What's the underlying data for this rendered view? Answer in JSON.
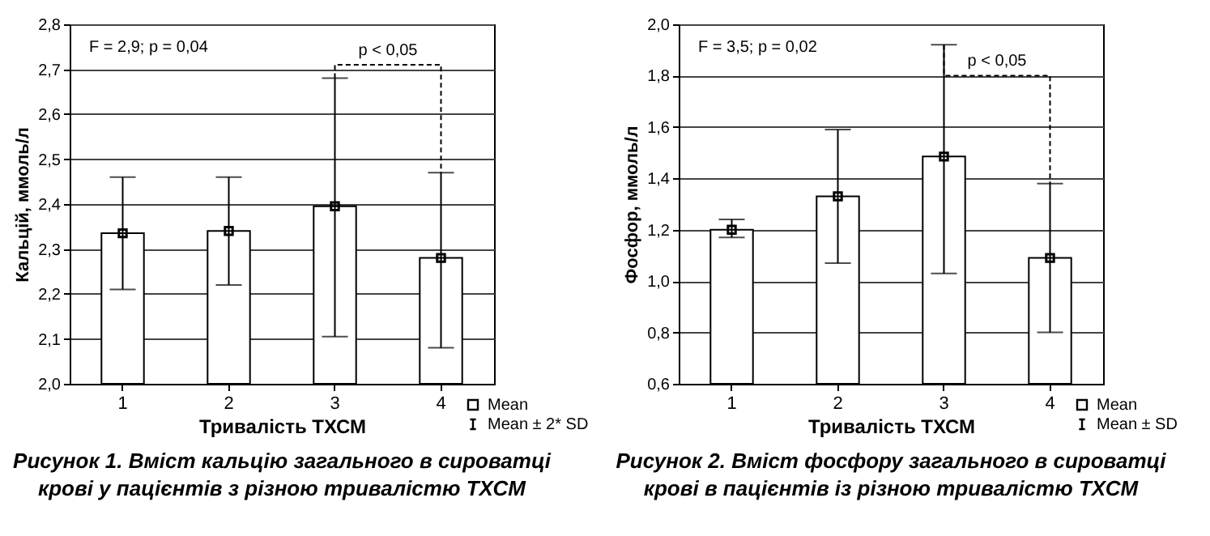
{
  "chart_data": [
    {
      "type": "bar",
      "title": "Рисунок 1. Вміст кальцію загального в сироватці крові у пацієнтів з різною тривалістю ТХСМ",
      "xlabel": "Тривалість ТХСМ",
      "ylabel": "Кальцій, ммоль/л",
      "categories": [
        "1",
        "2",
        "3",
        "4"
      ],
      "series": [
        {
          "color": "#ffffff",
          "values": [
            2.335,
            2.34,
            2.395,
            2.28
          ]
        },
        {
          "type": "scatter",
          "name": "Mean",
          "color": "#000000",
          "x": [
            "1",
            "2",
            "3",
            "4"
          ],
          "values": [
            2.335,
            2.34,
            2.395,
            2.28
          ],
          "errors": [
            [
              2.21,
              2.46
            ],
            [
              2.22,
              2.46
            ],
            [
              2.105,
              2.68
            ],
            [
              2.08,
              2.47
            ]
          ]
        }
      ],
      "ylim": [
        2.0,
        2.8
      ],
      "yticks": [
        {
          "value": 2.0,
          "label": "2,0"
        },
        {
          "value": 2.1,
          "label": "2,1"
        },
        {
          "value": 2.2,
          "label": "2,2"
        },
        {
          "value": 2.3,
          "label": "2,3"
        },
        {
          "value": 2.4,
          "label": "2,4"
        },
        {
          "value": 2.5,
          "label": "2,5"
        },
        {
          "value": 2.6,
          "label": "2,6"
        },
        {
          "value": 2.7,
          "label": "2,7"
        },
        {
          "value": 2.8,
          "label": "2,8"
        }
      ],
      "grid": "y",
      "marker": "square",
      "legend": "bottom right",
      "annotations": [
        "F = 2,9; p = 0,04",
        "Mean ± 2* SD",
        "p < 0,05"
      ]
    },
    {
      "type": "bar",
      "title": "Рисунок 2. Вміст фосфору загального в сироватці крові в пацієнтів із різною тривалістю ТХСМ",
      "xlabel": "Тривалість ТХСМ",
      "ylabel": "Фосфор, ммоль/л",
      "categories": [
        "1",
        "2",
        "3",
        "4"
      ],
      "series": [
        {
          "color": "#ffffff",
          "values": [
            1.2,
            1.33,
            1.485,
            1.09
          ]
        },
        {
          "type": "scatter",
          "name": "Mean",
          "color": "#000000",
          "x": [
            "1",
            "2",
            "3",
            "4"
          ],
          "values": [
            1.2,
            1.33,
            1.485,
            1.09
          ],
          "errors": [
            [
              1.17,
              1.24
            ],
            [
              1.07,
              1.59
            ],
            [
              1.03,
              1.92
            ],
            [
              0.8,
              1.38
            ]
          ]
        }
      ],
      "ylim": [
        0.6,
        2.0
      ],
      "yticks": [
        {
          "value": 0.6,
          "label": "0,6"
        },
        {
          "value": 0.8,
          "label": "0,8"
        },
        {
          "value": 1.0,
          "label": "1,0"
        },
        {
          "value": 1.2,
          "label": "1,2"
        },
        {
          "value": 1.4,
          "label": "1,4"
        },
        {
          "value": 1.6,
          "label": "1,6"
        },
        {
          "value": 1.8,
          "label": "1,8"
        },
        {
          "value": 2.0,
          "label": "2,0"
        }
      ],
      "grid": "y",
      "marker": "square",
      "legend": "bottom right",
      "annotations": [
        "F = 3,5; p = 0,02",
        "Mean ± SD",
        "p < 0,05"
      ]
    }
  ]
}
